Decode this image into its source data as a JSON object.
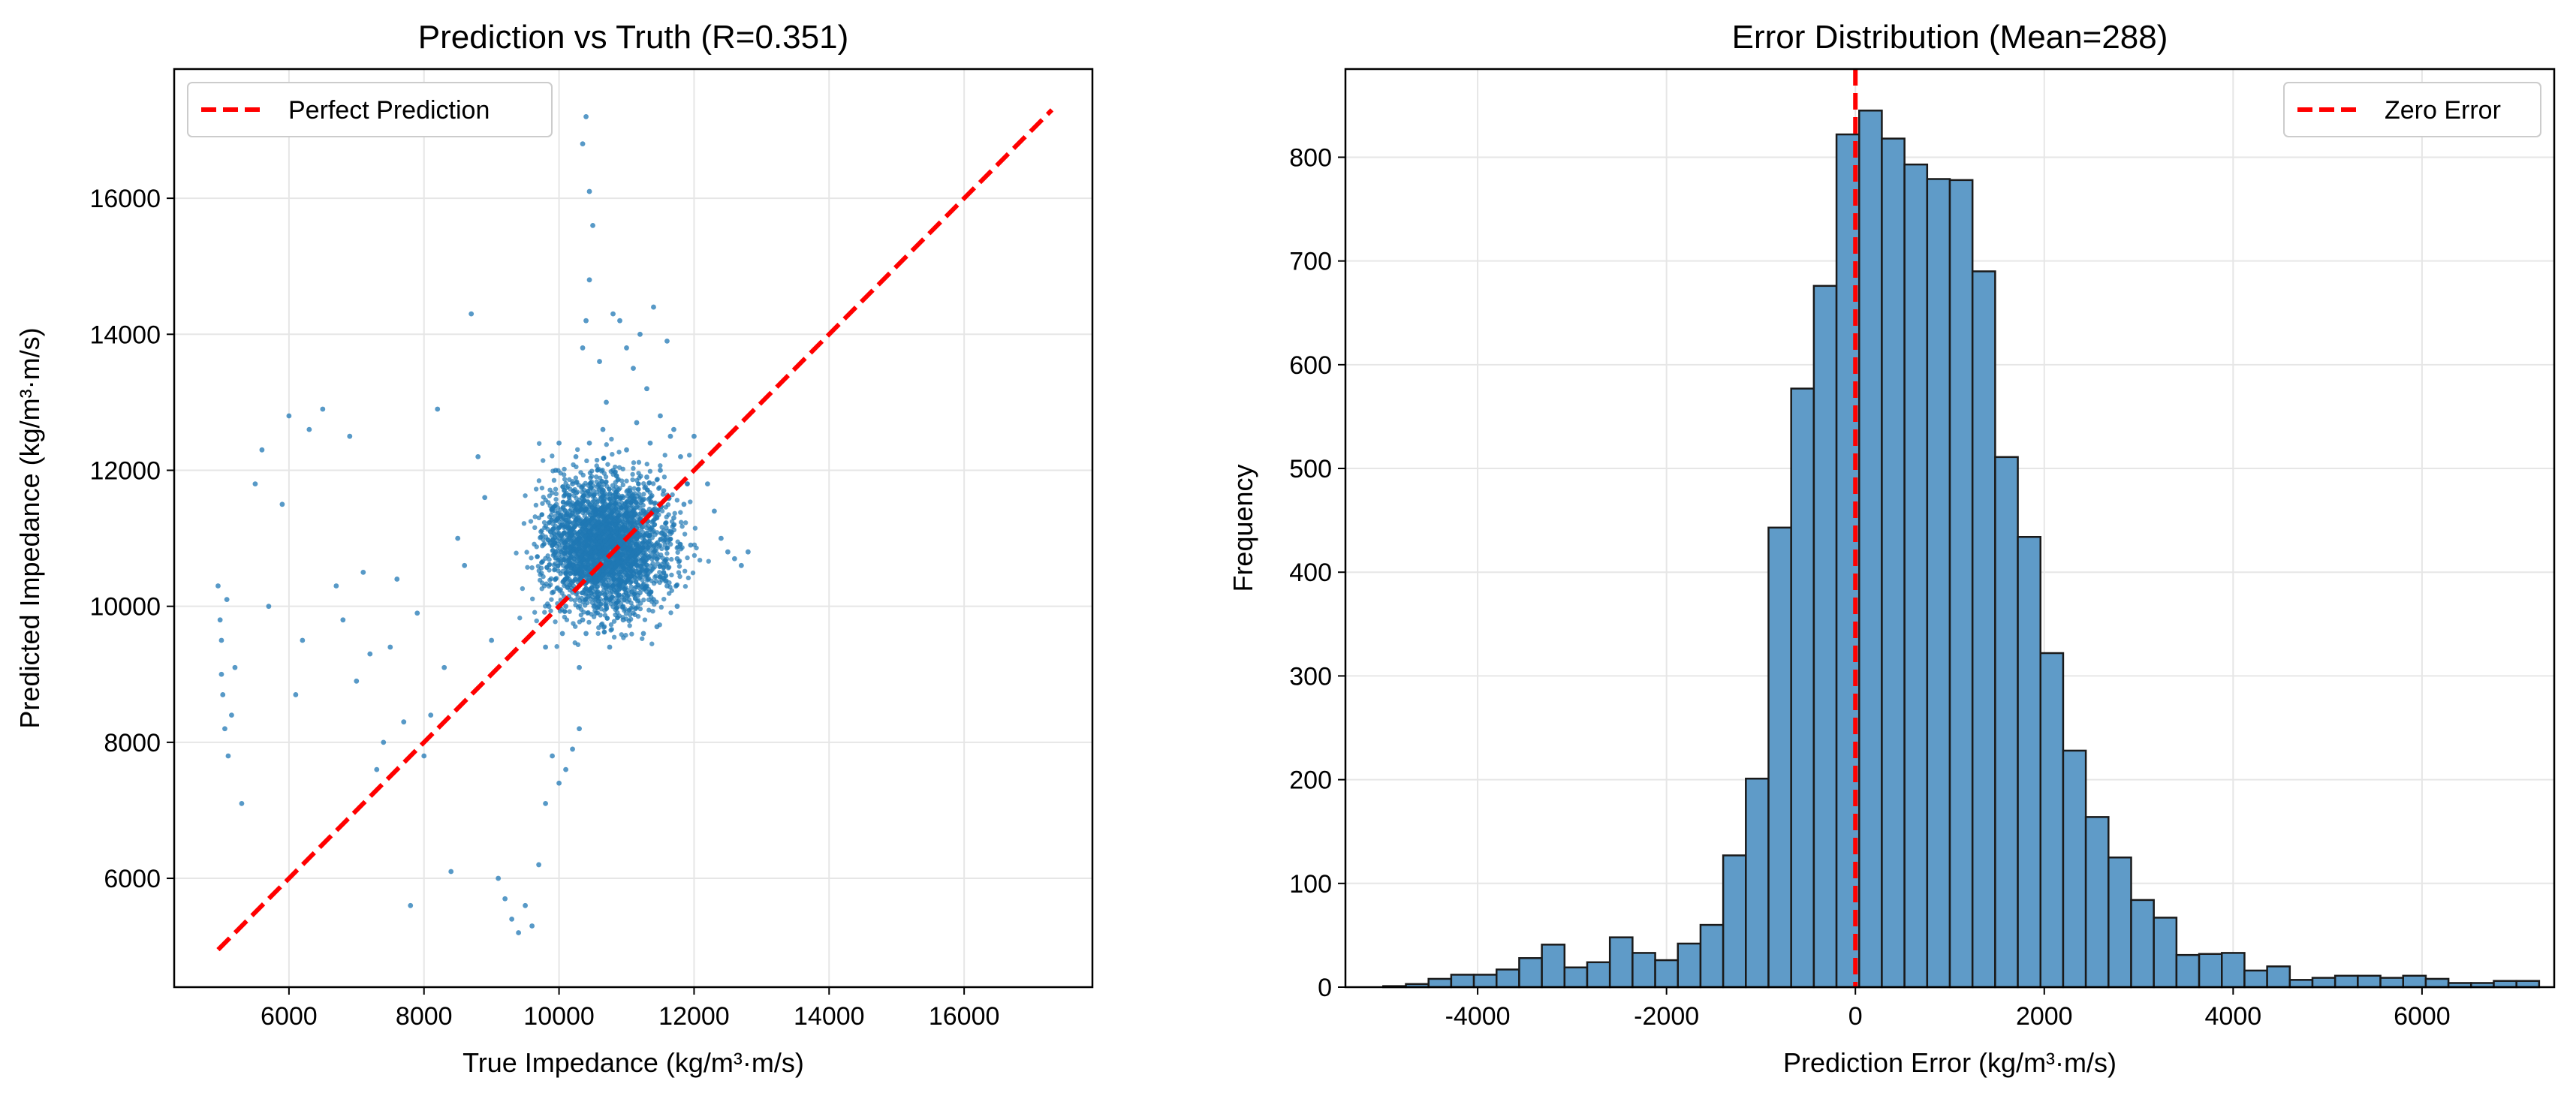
{
  "chart_data": [
    {
      "type": "scatter",
      "title": "Prediction vs Truth (R=0.351)",
      "xlabel": "True Impedance (kg/m³·m/s)",
      "ylabel": "Predicted Impedance (kg/m³·m/s)",
      "xlim": [
        4300,
        17900
      ],
      "ylim": [
        4400,
        17900
      ],
      "xticks": [
        6000,
        8000,
        10000,
        12000,
        14000,
        16000
      ],
      "yticks": [
        6000,
        8000,
        10000,
        12000,
        14000,
        16000
      ],
      "grid": true,
      "legend_position": "top-left",
      "series": [
        {
          "name": "Perfect Prediction",
          "kind": "line",
          "style": "dashed",
          "color": "#ff0000",
          "x": [
            4950,
            17300
          ],
          "y": [
            4950,
            17300
          ]
        }
      ],
      "point_color": "#1f77b4",
      "cluster_notes": "dense cloud around x≈10000–12000, y≈9500–12500",
      "points": [
        [
          4950,
          10300
        ],
        [
          4980,
          9800
        ],
        [
          5000,
          9000
        ],
        [
          5020,
          8700
        ],
        [
          5050,
          8200
        ],
        [
          5100,
          7800
        ],
        [
          5150,
          8400
        ],
        [
          5000,
          9500
        ],
        [
          5080,
          10100
        ],
        [
          5200,
          9100
        ],
        [
          5300,
          7100
        ],
        [
          5500,
          11800
        ],
        [
          5600,
          12300
        ],
        [
          5700,
          10000
        ],
        [
          5900,
          11500
        ],
        [
          6000,
          12800
        ],
        [
          6100,
          8700
        ],
        [
          6200,
          9500
        ],
        [
          6300,
          12600
        ],
        [
          6500,
          12900
        ],
        [
          6700,
          10300
        ],
        [
          6800,
          9800
        ],
        [
          6900,
          12500
        ],
        [
          7000,
          8900
        ],
        [
          7100,
          10500
        ],
        [
          7200,
          9300
        ],
        [
          7300,
          7600
        ],
        [
          7400,
          8000
        ],
        [
          7500,
          9400
        ],
        [
          7600,
          10400
        ],
        [
          7700,
          8300
        ],
        [
          7800,
          5600
        ],
        [
          7900,
          9900
        ],
        [
          8000,
          7800
        ],
        [
          8100,
          8400
        ],
        [
          8200,
          12900
        ],
        [
          8300,
          9100
        ],
        [
          8400,
          6100
        ],
        [
          8500,
          11000
        ],
        [
          8600,
          10600
        ],
        [
          8700,
          14300
        ],
        [
          8800,
          12200
        ],
        [
          8900,
          11600
        ],
        [
          9000,
          9500
        ],
        [
          9100,
          6000
        ],
        [
          9200,
          5700
        ],
        [
          9300,
          5400
        ],
        [
          9400,
          5200
        ],
        [
          9500,
          5600
        ],
        [
          9600,
          5300
        ],
        [
          9700,
          6200
        ],
        [
          9800,
          7100
        ],
        [
          9900,
          7800
        ],
        [
          10000,
          7400
        ],
        [
          10100,
          7600
        ],
        [
          10200,
          7900
        ],
        [
          10300,
          8200
        ],
        [
          10350,
          16800
        ],
        [
          10400,
          17200
        ],
        [
          10450,
          16100
        ],
        [
          10500,
          15600
        ],
        [
          10450,
          14800
        ],
        [
          10400,
          14200
        ],
        [
          10350,
          13800
        ],
        [
          10300,
          9100
        ],
        [
          10600,
          13600
        ],
        [
          10700,
          13000
        ],
        [
          10800,
          14300
        ],
        [
          10900,
          14200
        ],
        [
          11000,
          13800
        ],
        [
          11100,
          13500
        ],
        [
          11200,
          14000
        ],
        [
          11300,
          13200
        ],
        [
          11400,
          14400
        ],
        [
          11500,
          12800
        ],
        [
          11600,
          13900
        ],
        [
          11700,
          12600
        ],
        [
          11800,
          12200
        ],
        [
          11900,
          11800
        ],
        [
          12000,
          12500
        ],
        [
          12100,
          12100
        ],
        [
          12200,
          11800
        ],
        [
          12300,
          11400
        ],
        [
          12400,
          11000
        ],
        [
          12500,
          10800
        ],
        [
          12600,
          10700
        ],
        [
          12700,
          10600
        ],
        [
          12800,
          10800
        ],
        [
          9900,
          10200
        ],
        [
          9950,
          10800
        ],
        [
          10050,
          11200
        ],
        [
          10150,
          11600
        ],
        [
          10250,
          10400
        ],
        [
          10350,
          9800
        ],
        [
          10450,
          11000
        ],
        [
          10550,
          11400
        ],
        [
          10650,
          10600
        ],
        [
          10750,
          11200
        ],
        [
          10850,
          10800
        ],
        [
          10950,
          11600
        ],
        [
          11050,
          11000
        ],
        [
          11150,
          10600
        ],
        [
          11250,
          11400
        ],
        [
          11350,
          10900
        ],
        [
          11450,
          11300
        ],
        [
          11550,
          10500
        ],
        [
          11650,
          11100
        ],
        [
          11750,
          10700
        ],
        [
          11850,
          11500
        ],
        [
          11950,
          10900
        ],
        [
          9800,
          9400
        ],
        [
          9850,
          10000
        ],
        [
          9900,
          11400
        ],
        [
          9950,
          12000
        ],
        [
          10000,
          12400
        ],
        [
          10050,
          9600
        ],
        [
          10100,
          10000
        ],
        [
          10150,
          10600
        ],
        [
          10200,
          11800
        ],
        [
          10250,
          12200
        ],
        [
          10300,
          11000
        ],
        [
          10350,
          10200
        ],
        [
          10400,
          9600
        ],
        [
          10450,
          12400
        ],
        [
          10500,
          10400
        ],
        [
          10550,
          9900
        ],
        [
          10600,
          11800
        ],
        [
          10650,
          12600
        ],
        [
          10700,
          10000
        ],
        [
          10750,
          9400
        ],
        [
          10800,
          12000
        ],
        [
          10850,
          11300
        ],
        [
          10900,
          10300
        ],
        [
          10950,
          9800
        ],
        [
          11000,
          12300
        ],
        [
          11050,
          11700
        ],
        [
          11100,
          9900
        ],
        [
          11150,
          12700
        ],
        [
          11200,
          10200
        ],
        [
          11250,
          9600
        ],
        [
          11300,
          11900
        ],
        [
          11350,
          12400
        ],
        [
          11400,
          10100
        ],
        [
          11450,
          9700
        ],
        [
          11500,
          12000
        ],
        [
          11550,
          11700
        ],
        [
          11600,
          10300
        ],
        [
          11650,
          12500
        ],
        [
          11700,
          11300
        ],
        [
          11750,
          10000
        ]
      ]
    },
    {
      "type": "bar",
      "subtype": "histogram",
      "title": "Error Distribution (Mean=288)",
      "xlabel": "Prediction Error (kg/m³·m/s)",
      "ylabel": "Frequency",
      "xlim": [
        -5400,
        7400
      ],
      "ylim": [
        0,
        885
      ],
      "xticks": [
        -4000,
        -2000,
        0,
        2000,
        4000,
        6000
      ],
      "xtick_labels": [
        "-4000",
        "-2000",
        "0",
        "2000",
        "4000",
        "6000"
      ],
      "yticks": [
        0,
        100,
        200,
        300,
        400,
        500,
        600,
        700,
        800
      ],
      "grid": true,
      "legend_position": "top-right",
      "bar_color": "#5f9bc8",
      "bin_start": -5000,
      "bin_width": 240,
      "values": [
        1,
        3,
        8,
        12,
        12,
        17,
        28,
        41,
        19,
        24,
        48,
        33,
        26,
        42,
        60,
        127,
        201,
        443,
        577,
        676,
        822,
        845,
        818,
        793,
        779,
        778,
        690,
        511,
        434,
        322,
        228,
        164,
        125,
        84,
        67,
        31,
        32,
        33,
        16,
        20,
        7,
        9,
        11,
        11,
        9,
        11,
        8,
        4,
        4,
        6,
        6
      ],
      "series": [
        {
          "name": "Zero Error",
          "kind": "vline",
          "style": "dashed",
          "color": "#ff0000",
          "x": 0
        }
      ]
    }
  ]
}
